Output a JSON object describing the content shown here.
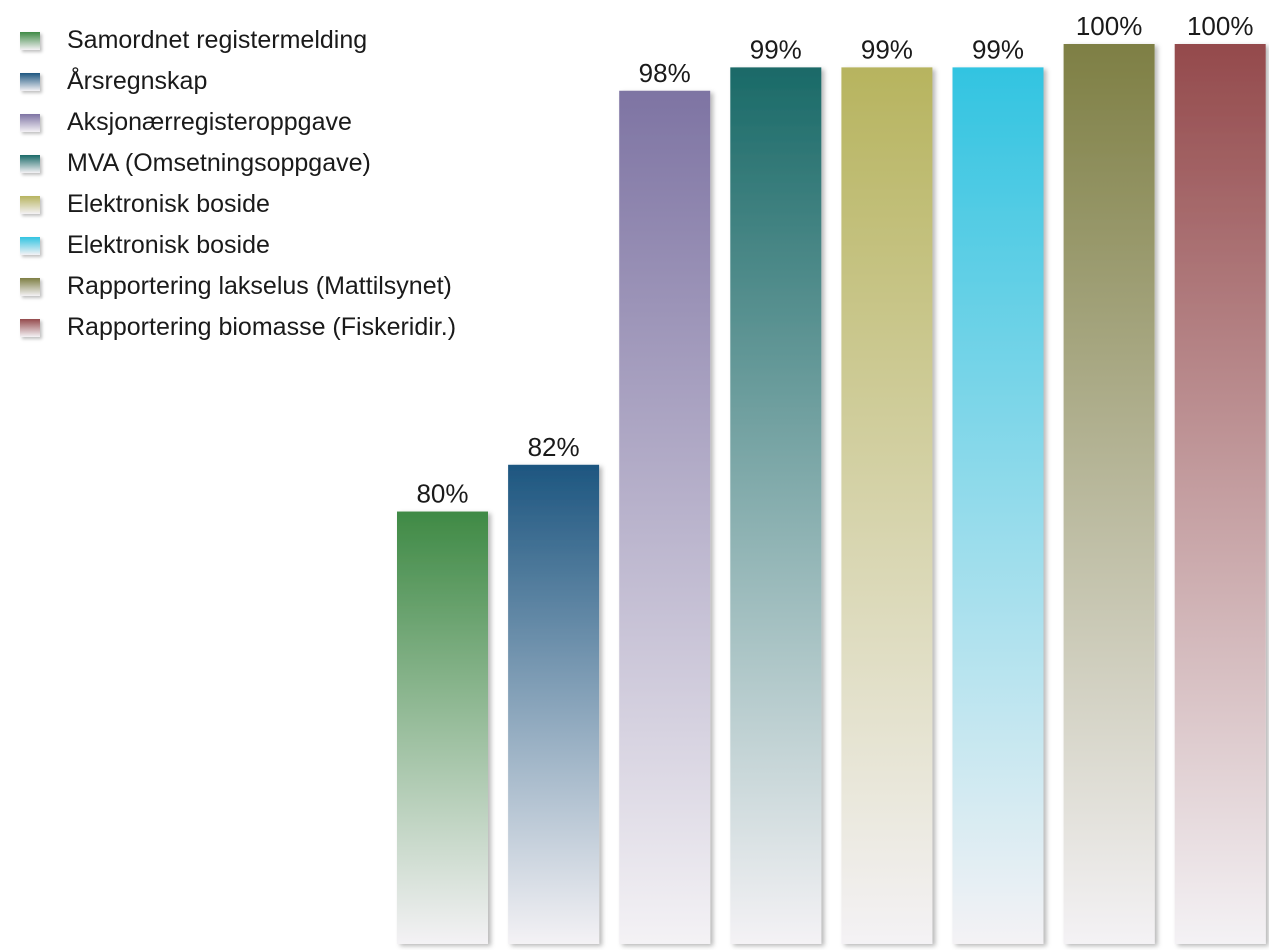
{
  "chart_data": {
    "type": "bar",
    "categories": [
      "Samordnet registermelding",
      "Årsregnskap",
      "Aksjonærregisteroppgave",
      "MVA (Omsetningsoppgave)",
      "Elektronisk boside",
      "Elektronisk boside",
      "Rapportering lakselus (Mattilsynet)",
      "Rapportering biomasse (Fiskeridir.)"
    ],
    "values": [
      80,
      82,
      98,
      99,
      99,
      99,
      100,
      100
    ],
    "value_labels": [
      "80%",
      "82%",
      "98%",
      "99%",
      "99%",
      "99%",
      "100%",
      "100%"
    ],
    "colors": [
      "#3f8a45",
      "#1d5680",
      "#7e74a3",
      "#1a6a68",
      "#b7b45f",
      "#32c4e1",
      "#7e7f44",
      "#944a4c"
    ],
    "ylim": [
      61.5,
      100
    ],
    "grid": false,
    "legend_position": "top-left"
  }
}
